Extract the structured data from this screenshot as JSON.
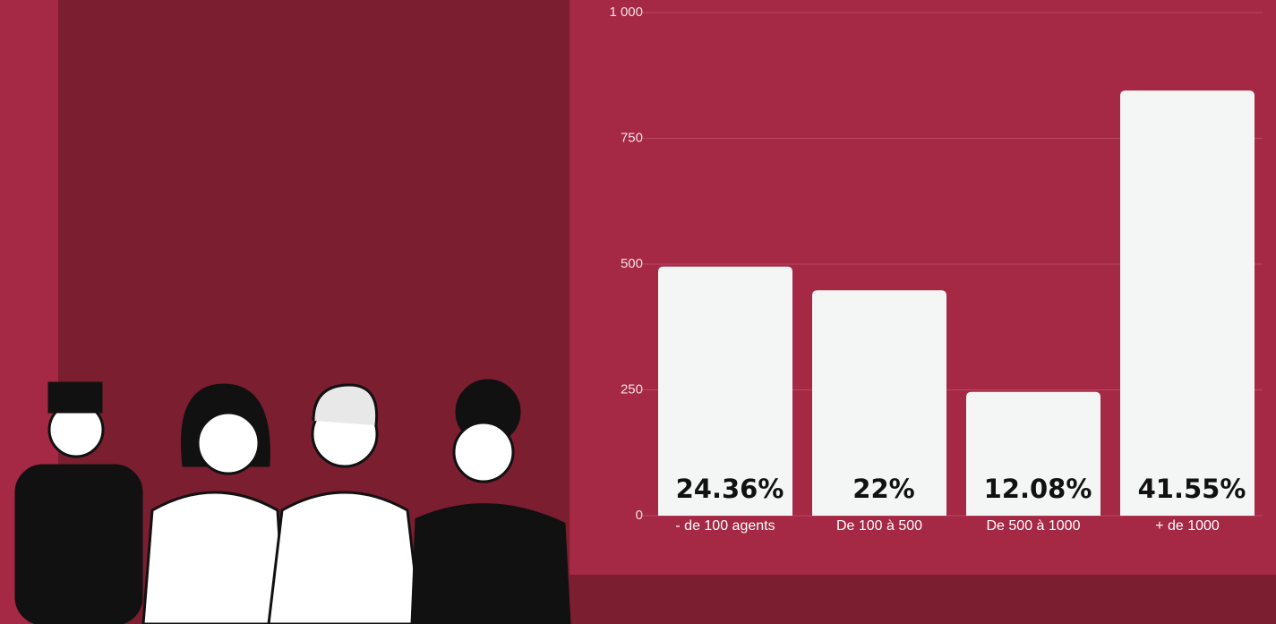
{
  "chart_data": {
    "type": "bar",
    "categories": [
      "- de 100 agents",
      "De 100 à 500",
      "De 500 à 1000",
      "+ de 1000"
    ],
    "values": [
      495,
      448,
      246,
      845
    ],
    "shares": [
      24.36,
      22,
      12.08,
      41.55
    ],
    "share_labels": [
      "24.36%",
      "22%",
      "12.08%",
      "41.55%"
    ],
    "color": "#f3f6f5",
    "ylim": [
      0,
      1000
    ],
    "yticks": [
      0,
      250,
      500,
      750,
      {
        "value": 1000,
        "label": "1 000"
      }
    ],
    "grid": true
  }
}
